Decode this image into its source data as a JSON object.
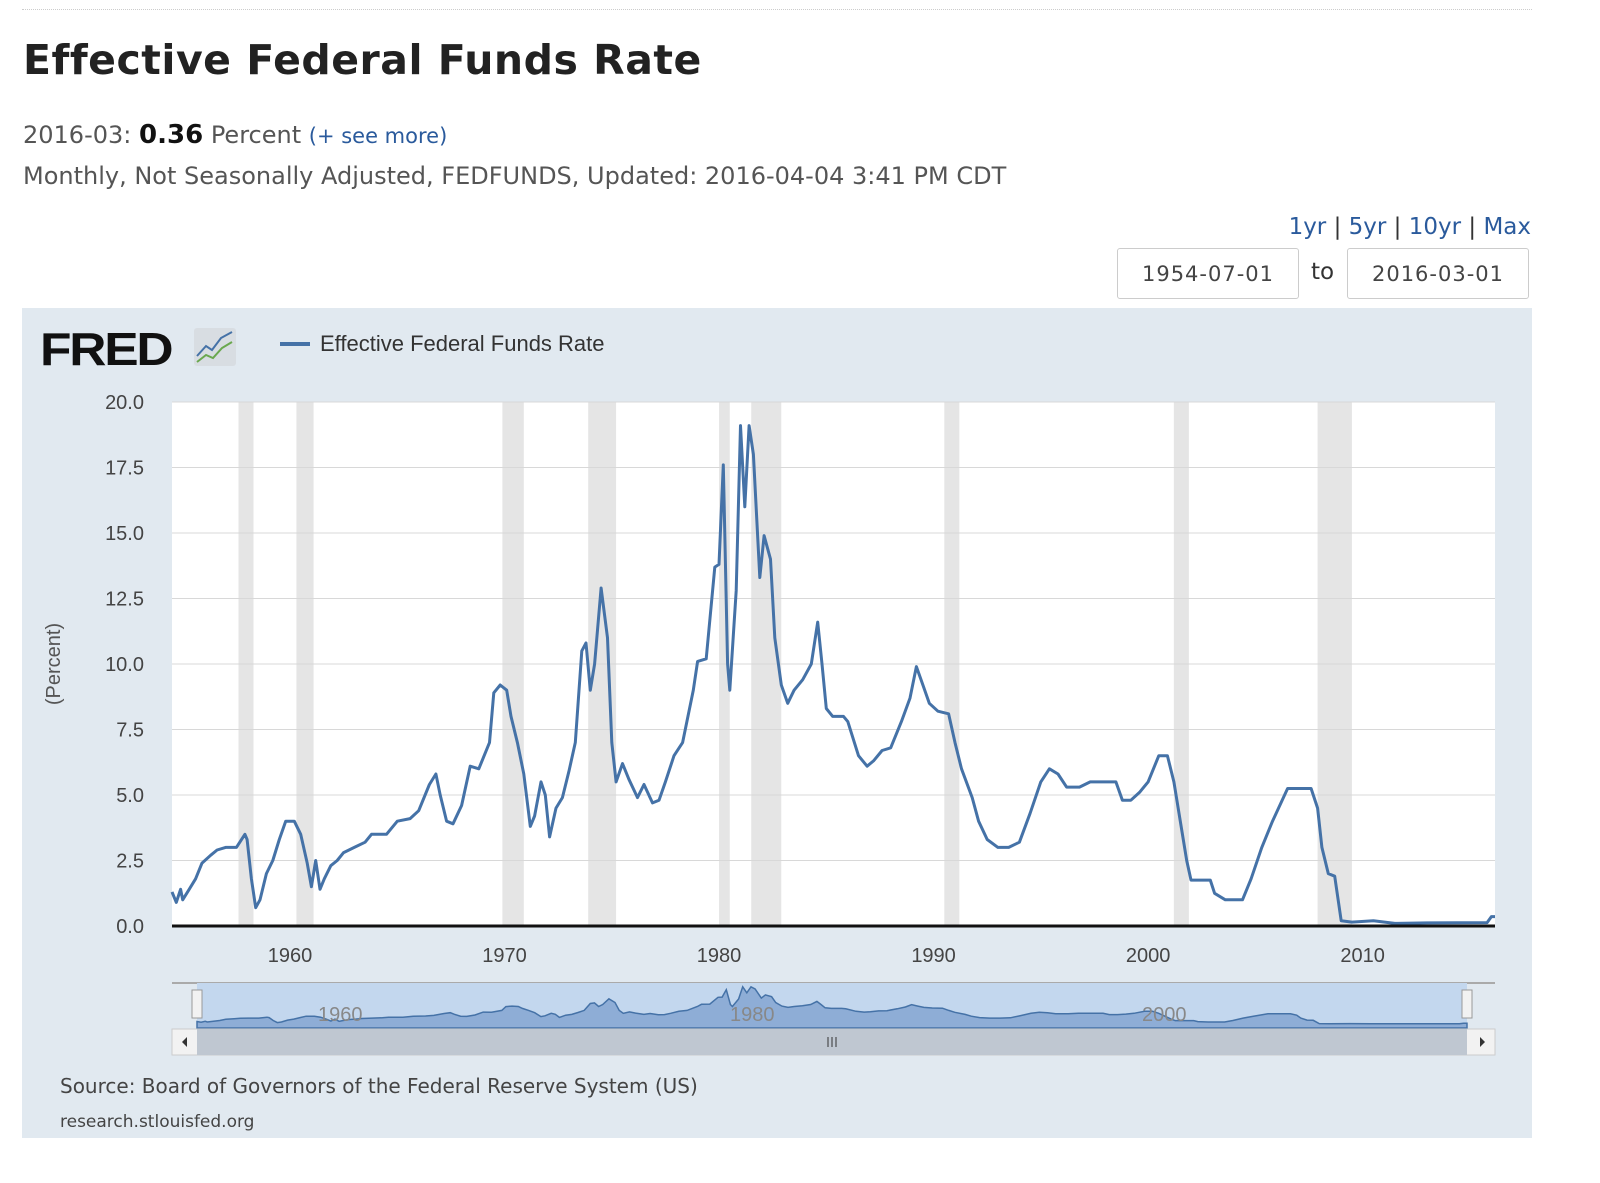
{
  "header": {
    "title": "Effective Federal Funds Rate",
    "obs_date": "2016-03:",
    "obs_value": "0.36",
    "obs_units": "Percent",
    "see_more": "(+ see more)",
    "meta": "Monthly, Not Seasonally Adjusted, FEDFUNDS, Updated: 2016-04-04 3:41 PM CDT"
  },
  "range": {
    "links": [
      "1yr",
      "5yr",
      "10yr",
      "Max"
    ],
    "from": "1954-07-01",
    "to_label": "to",
    "to": "2016-03-01"
  },
  "footer": {
    "source": "Source: Board of Governors of the Federal Reserve System (US)",
    "site": "research.stlouisfed.org"
  },
  "logo": {
    "text": "FRED"
  },
  "colors": {
    "series": "#4572a7",
    "panel": "#e1e9f0",
    "recession": "#e5e5e5"
  },
  "chart_data": {
    "type": "line",
    "title": "Effective Federal Funds Rate",
    "legend": [
      "Effective Federal Funds Rate"
    ],
    "legend_position": "top-left",
    "xlabel": "",
    "ylabel": "(Percent)",
    "xlim": [
      1954.5,
      2016.17
    ],
    "ylim": [
      0,
      20
    ],
    "yticks": [
      "0.0",
      "2.5",
      "5.0",
      "7.5",
      "10.0",
      "12.5",
      "15.0",
      "17.5",
      "20.0"
    ],
    "ytick_values": [
      0,
      2.5,
      5,
      7.5,
      10,
      12.5,
      15,
      17.5,
      20
    ],
    "xticks": [
      "1960",
      "1970",
      "1980",
      "1990",
      "2000",
      "2010"
    ],
    "xtick_values": [
      1960,
      1970,
      1980,
      1990,
      2000,
      2010
    ],
    "navigator_labels": [
      "1960",
      "1980",
      "2000"
    ],
    "grid": true,
    "recessions": [
      [
        1957.6,
        1958.3
      ],
      [
        1960.3,
        1961.1
      ],
      [
        1969.9,
        1970.9
      ],
      [
        1973.9,
        1975.2
      ],
      [
        1980.0,
        1980.5
      ],
      [
        1981.5,
        1982.9
      ],
      [
        1990.5,
        1991.2
      ],
      [
        2001.2,
        2001.9
      ],
      [
        2007.9,
        2009.5
      ]
    ],
    "series": [
      {
        "name": "Effective Federal Funds Rate",
        "x": [
          1954.5,
          1954.7,
          1954.9,
          1955.0,
          1955.3,
          1955.6,
          1955.9,
          1956.3,
          1956.6,
          1957.0,
          1957.5,
          1957.9,
          1958.0,
          1958.2,
          1958.4,
          1958.6,
          1958.9,
          1959.2,
          1959.5,
          1959.8,
          1960.2,
          1960.5,
          1960.8,
          1961.0,
          1961.2,
          1961.4,
          1961.6,
          1961.9,
          1962.2,
          1962.5,
          1963.0,
          1963.5,
          1963.8,
          1964.5,
          1965.0,
          1965.6,
          1966.0,
          1966.5,
          1966.8,
          1967.0,
          1967.3,
          1967.6,
          1968.0,
          1968.4,
          1968.8,
          1969.3,
          1969.5,
          1969.8,
          1970.1,
          1970.3,
          1970.6,
          1970.9,
          1971.2,
          1971.4,
          1971.7,
          1971.9,
          1972.1,
          1972.4,
          1972.7,
          1973.0,
          1973.3,
          1973.6,
          1973.8,
          1974.0,
          1974.2,
          1974.5,
          1974.8,
          1975.0,
          1975.2,
          1975.5,
          1975.8,
          1976.2,
          1976.5,
          1976.9,
          1977.2,
          1977.5,
          1977.9,
          1978.3,
          1978.8,
          1979.0,
          1979.4,
          1979.8,
          1980.0,
          1980.2,
          1980.4,
          1980.5,
          1980.8,
          1981.0,
          1981.2,
          1981.4,
          1981.6,
          1981.9,
          1982.1,
          1982.4,
          1982.6,
          1982.9,
          1983.2,
          1983.5,
          1983.9,
          1984.3,
          1984.6,
          1984.8,
          1985.0,
          1985.3,
          1985.8,
          1986.0,
          1986.5,
          1986.9,
          1987.2,
          1987.6,
          1988.0,
          1988.5,
          1988.9,
          1989.2,
          1989.5,
          1989.8,
          1990.2,
          1990.7,
          1991.0,
          1991.3,
          1991.8,
          1992.1,
          1992.5,
          1993.0,
          1993.5,
          1994.0,
          1994.5,
          1995.0,
          1995.4,
          1995.8,
          1996.2,
          1996.8,
          1997.3,
          1997.8,
          1998.5,
          1998.8,
          1999.2,
          1999.6,
          2000.0,
          2000.5,
          2000.9,
          2001.2,
          2001.5,
          2001.8,
          2002.0,
          2002.9,
          2003.1,
          2003.6,
          2004.4,
          2004.8,
          2005.3,
          2005.8,
          2006.5,
          2007.6,
          2007.9,
          2008.1,
          2008.4,
          2008.7,
          2009.0,
          2009.5,
          2010.5,
          2011.5,
          2013.0,
          2015.8,
          2016.0,
          2016.17
        ],
        "values": [
          1.3,
          0.9,
          1.4,
          1.0,
          1.4,
          1.8,
          2.4,
          2.7,
          2.9,
          3.0,
          3.0,
          3.5,
          3.3,
          1.8,
          0.7,
          1.0,
          2.0,
          2.5,
          3.3,
          4.0,
          4.0,
          3.5,
          2.4,
          1.5,
          2.5,
          1.4,
          1.8,
          2.3,
          2.5,
          2.8,
          3.0,
          3.2,
          3.5,
          3.5,
          4.0,
          4.1,
          4.4,
          5.4,
          5.8,
          5.0,
          4.0,
          3.9,
          4.6,
          6.1,
          6.0,
          7.0,
          8.9,
          9.2,
          9.0,
          8.0,
          7.0,
          5.8,
          3.8,
          4.2,
          5.5,
          5.0,
          3.4,
          4.5,
          4.9,
          5.9,
          7.0,
          10.5,
          10.8,
          9.0,
          10.0,
          12.9,
          11.0,
          7.0,
          5.5,
          6.2,
          5.6,
          4.9,
          5.4,
          4.7,
          4.8,
          5.5,
          6.5,
          7.0,
          9.0,
          10.1,
          10.2,
          13.7,
          13.8,
          17.6,
          10.0,
          9.0,
          12.8,
          19.1,
          16.0,
          19.1,
          18.0,
          13.3,
          14.9,
          14.0,
          11.0,
          9.2,
          8.5,
          9.0,
          9.4,
          10.0,
          11.6,
          10.0,
          8.3,
          8.0,
          8.0,
          7.8,
          6.5,
          6.1,
          6.3,
          6.7,
          6.8,
          7.8,
          8.7,
          9.9,
          9.2,
          8.5,
          8.2,
          8.1,
          7.0,
          6.0,
          4.9,
          4.0,
          3.3,
          3.0,
          3.0,
          3.2,
          4.3,
          5.5,
          6.0,
          5.8,
          5.3,
          5.3,
          5.5,
          5.5,
          5.5,
          4.8,
          4.8,
          5.1,
          5.5,
          6.5,
          6.5,
          5.5,
          4.0,
          2.5,
          1.75,
          1.75,
          1.25,
          1.0,
          1.0,
          1.8,
          3.0,
          4.0,
          5.25,
          5.25,
          4.5,
          3.0,
          2.0,
          1.9,
          0.2,
          0.15,
          0.2,
          0.1,
          0.12,
          0.13,
          0.36,
          0.36
        ]
      }
    ]
  }
}
